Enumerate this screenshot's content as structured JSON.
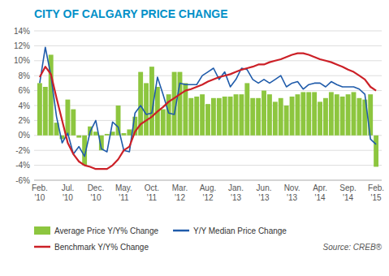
{
  "chart_data": {
    "type": "bar",
    "title": "CITY OF CALGARY PRICE CHANGE",
    "categories": [
      "Feb.\n'10",
      null,
      null,
      null,
      null,
      "Jul.\n'10",
      null,
      null,
      null,
      null,
      "Dec.\n'10",
      null,
      null,
      null,
      null,
      "May.\n'11",
      null,
      null,
      null,
      null,
      "Oct.\n'11",
      null,
      null,
      null,
      null,
      "Mar.\n'12",
      null,
      null,
      null,
      null,
      "Aug.\n'12",
      null,
      null,
      null,
      null,
      "Jan.\n'13",
      null,
      null,
      null,
      null,
      "Jun.\n'13",
      null,
      null,
      null,
      null,
      "Nov.\n'13",
      null,
      null,
      null,
      null,
      "Apr.\n'14",
      null,
      null,
      null,
      null,
      "Sep.\n'14",
      null,
      null,
      null,
      null,
      "Feb.\n'15"
    ],
    "series": [
      {
        "name": "Average Price Y/Y% Change",
        "type": "bar",
        "color": "#8dc63f",
        "values": [
          7.0,
          6.5,
          10.8,
          1.7,
          -0.5,
          4.8,
          3.5,
          -0.3,
          -4.0,
          1.2,
          0.5,
          -2.0,
          0.2,
          0.5,
          4.0,
          0.3,
          0.8,
          2.5,
          8.5,
          7.0,
          9.2,
          6.5,
          3.5,
          5.5,
          8.5,
          8.5,
          7.0,
          5.0,
          5.2,
          5.5,
          4.2,
          5.0,
          5.0,
          5.2,
          5.2,
          5.5,
          5.5,
          7.0,
          5.0,
          5.0,
          6.0,
          5.5,
          4.5,
          5.0,
          4.0,
          5.2,
          5.5,
          5.8,
          5.8,
          5.8,
          4.5,
          5.0,
          5.8,
          5.5,
          5.2,
          5.5,
          5.8,
          5.0,
          4.8,
          5.5,
          -4.2
        ]
      },
      {
        "name": "Y/Y Median Price Change",
        "type": "line",
        "color": "#1f5baa",
        "values": [
          7.0,
          11.8,
          8.0,
          2.5,
          -1.0,
          0.3,
          -2.5,
          -1.5,
          -2.8,
          0.5,
          2.0,
          -1.8,
          -2.2,
          1.8,
          1.1,
          -2.0,
          -2.2,
          3.0,
          4.0,
          2.8,
          3.0,
          7.8,
          5.5,
          3.0,
          2.8,
          7.0,
          6.8,
          6.8,
          6.8,
          8.0,
          8.5,
          9.0,
          7.5,
          8.5,
          6.5,
          7.5,
          9.0,
          8.8,
          7.5,
          7.0,
          7.5,
          7.0,
          7.5,
          8.0,
          6.5,
          7.0,
          7.2,
          6.2,
          6.8,
          7.0,
          7.0,
          6.5,
          7.2,
          6.8,
          6.5,
          6.5,
          6.5,
          6.2,
          5.5,
          -0.5,
          -1.2
        ]
      },
      {
        "name": "Benchmark Y/Y% Change",
        "type": "line",
        "color": "#cc2027",
        "values": [
          7.8,
          9.2,
          8.2,
          5.0,
          2.0,
          -1.0,
          -2.5,
          -3.5,
          -4.0,
          -4.2,
          -4.5,
          -4.5,
          -4.5,
          -4.0,
          -3.2,
          -2.0,
          -1.5,
          0.5,
          1.5,
          2.0,
          2.5,
          3.2,
          3.8,
          4.5,
          5.0,
          5.5,
          6.0,
          6.2,
          6.5,
          6.8,
          7.2,
          7.5,
          7.8,
          8.0,
          8.2,
          8.5,
          8.8,
          9.0,
          9.2,
          9.5,
          9.5,
          9.8,
          10.0,
          10.2,
          10.5,
          10.8,
          11.0,
          11.0,
          10.8,
          10.5,
          10.2,
          10.0,
          9.8,
          9.5,
          9.2,
          8.8,
          8.5,
          8.0,
          7.5,
          6.5,
          6.0
        ]
      }
    ],
    "ylim": [
      -6,
      14
    ],
    "yticks": [
      {
        "value": -6,
        "label": "-6%"
      },
      {
        "value": -4,
        "label": "-4%"
      },
      {
        "value": -2,
        "label": "-2%"
      },
      {
        "value": 0,
        "label": "0%"
      },
      {
        "value": 2,
        "label": "2%"
      },
      {
        "value": 4,
        "label": "4%"
      },
      {
        "value": 6,
        "label": "6%"
      },
      {
        "value": 8,
        "label": "8%"
      },
      {
        "value": 10,
        "label": "10%"
      },
      {
        "value": 12,
        "label": "12%"
      },
      {
        "value": 14,
        "label": "14%"
      }
    ],
    "grid": true,
    "legend": "bottom",
    "annotations": [
      "Source: CREB®"
    ]
  }
}
